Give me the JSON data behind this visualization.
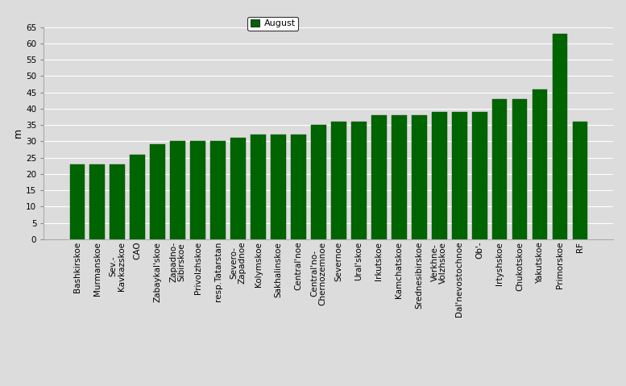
{
  "categories": [
    "Bashkirskoe",
    "Murmanskoe",
    "Sev.-\nKavkazskoe",
    "CAO",
    "Zabaykal'skoe",
    "Zapadno-\nSibirskoe",
    "Privolzhskoe",
    "resp.Tatarstan",
    "Severo-\nZapadnoe",
    "Kolymskoe",
    "Sakhalinskoe",
    "Central'noe",
    "Central'no-\nChernozemnoe",
    "Severnoe",
    "Ural'skoe",
    "Irkutskoe",
    "Kamchatskoe",
    "Srednesibirskoe",
    "Verkhne-\nVolzhskoe",
    "Dal'nevostochnoe",
    "Ob'-",
    "Irtyshskoe",
    "Chukotskoe",
    "Yakutskoe",
    "Primorskoe",
    "RF"
  ],
  "values": [
    23,
    23,
    23,
    26,
    29,
    30,
    30,
    30,
    31,
    32,
    32,
    32,
    35,
    36,
    36,
    38,
    38,
    38,
    39,
    39,
    39,
    43,
    43,
    46,
    63,
    36
  ],
  "bar_color": "#006400",
  "bar_edge_color": "#005000",
  "ylabel": "m",
  "ylim": [
    0,
    65
  ],
  "yticks": [
    0,
    5,
    10,
    15,
    20,
    25,
    30,
    35,
    40,
    45,
    50,
    55,
    60,
    65
  ],
  "legend_label": "August",
  "legend_color": "#006400",
  "bg_color": "#dcdcdc",
  "plot_bg_color": "#dcdcdc",
  "grid_color": "#ffffff",
  "axis_fontsize": 8,
  "tick_fontsize": 7.5
}
